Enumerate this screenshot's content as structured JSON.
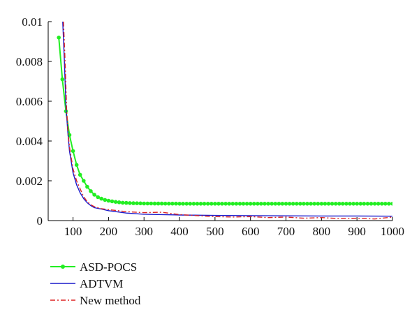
{
  "chart_data": {
    "type": "line",
    "title": "",
    "xlabel": "",
    "ylabel": "",
    "xlim": [
      30,
      1000
    ],
    "ylim": [
      0,
      0.01
    ],
    "x_ticks": [
      100,
      200,
      300,
      400,
      500,
      600,
      700,
      800,
      900,
      1000
    ],
    "x_tick_labels": [
      "100",
      "200",
      "300",
      "400",
      "500",
      "600",
      "700",
      "800",
      "900",
      "1000"
    ],
    "y_ticks": [
      0,
      0.002,
      0.004,
      0.006,
      0.008,
      0.01
    ],
    "y_tick_labels": [
      "0",
      "0.002",
      "0.004",
      "0.006",
      "0.008",
      "0.01"
    ],
    "grid": false,
    "legend_position": "below-left",
    "series": [
      {
        "name": "ASD-POCS",
        "color": "#22ee22",
        "style": "solid-dot",
        "x": [
          60,
          70,
          80,
          90,
          100,
          110,
          120,
          130,
          140,
          150,
          160,
          170,
          180,
          190,
          200,
          220,
          240,
          260,
          280,
          300,
          400,
          500,
          600,
          700,
          800,
          900,
          1000
        ],
        "y": [
          0.0092,
          0.0071,
          0.0055,
          0.0043,
          0.0035,
          0.0028,
          0.0023,
          0.002,
          0.0017,
          0.00148,
          0.0013,
          0.00118,
          0.0011,
          0.00104,
          0.001,
          0.00094,
          0.0009,
          0.00088,
          0.00087,
          0.00086,
          0.00085,
          0.00085,
          0.00085,
          0.00085,
          0.00085,
          0.00085,
          0.00085
        ]
      },
      {
        "name": "ADTVM",
        "color": "#1a1acc",
        "style": "solid",
        "x": [
          71,
          75,
          80,
          85,
          90,
          100,
          110,
          120,
          130,
          140,
          150,
          160,
          180,
          200,
          250,
          300,
          350,
          400,
          500,
          600,
          700,
          800,
          900,
          1000
        ],
        "y": [
          0.01,
          0.0083,
          0.0058,
          0.0045,
          0.0035,
          0.0024,
          0.0018,
          0.0014,
          0.0011,
          0.0009,
          0.00075,
          0.00065,
          0.00058,
          0.0005,
          0.00038,
          0.00032,
          0.0003,
          0.00028,
          0.00026,
          0.00025,
          0.00024,
          0.00023,
          0.00023,
          0.00022
        ]
      },
      {
        "name": "New method",
        "color": "#dd2222",
        "style": "dash-dot",
        "x": [
          73,
          78,
          82,
          86,
          90,
          100,
          110,
          120,
          130,
          140,
          150,
          160,
          180,
          200,
          250,
          300,
          350,
          400,
          450,
          500,
          550,
          600,
          650,
          700,
          750,
          800,
          850,
          900,
          950,
          1000
        ],
        "y": [
          0.01,
          0.0078,
          0.0056,
          0.0044,
          0.0037,
          0.0026,
          0.002,
          0.0016,
          0.0012,
          0.00095,
          0.0008,
          0.0007,
          0.0006,
          0.00055,
          0.00045,
          0.0004,
          0.00042,
          0.0003,
          0.00025,
          0.0002,
          0.00018,
          0.0002,
          0.00015,
          0.00018,
          0.00012,
          0.00015,
          0.0001,
          0.00012,
          8e-05,
          0.00018
        ]
      }
    ]
  }
}
